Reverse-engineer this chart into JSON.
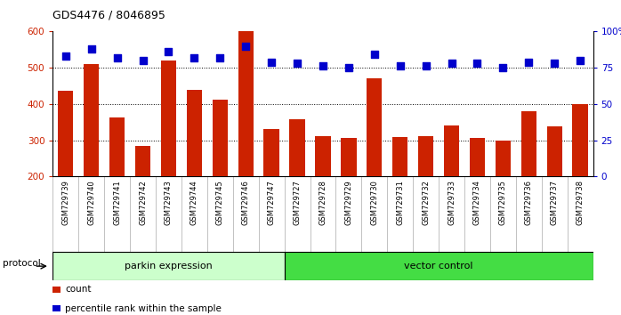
{
  "title": "GDS4476 / 8046895",
  "samples": [
    "GSM729739",
    "GSM729740",
    "GSM729741",
    "GSM729742",
    "GSM729743",
    "GSM729744",
    "GSM729745",
    "GSM729746",
    "GSM729747",
    "GSM729727",
    "GSM729728",
    "GSM729729",
    "GSM729730",
    "GSM729731",
    "GSM729732",
    "GSM729733",
    "GSM729734",
    "GSM729735",
    "GSM729736",
    "GSM729737",
    "GSM729738"
  ],
  "count_values": [
    437,
    510,
    362,
    283,
    519,
    440,
    411,
    600,
    330,
    357,
    310,
    307,
    470,
    309,
    311,
    341,
    307,
    299,
    381,
    338,
    399
  ],
  "percentile_values": [
    83,
    88,
    82,
    80,
    86,
    82,
    82,
    90,
    79,
    78,
    76,
    75,
    84,
    76,
    76,
    78,
    78,
    75,
    79,
    78,
    80
  ],
  "group1_count": 9,
  "group2_count": 12,
  "group1_label": "parkin expression",
  "group2_label": "vector control",
  "group1_color": "#ccffcc",
  "group2_color": "#44dd44",
  "protocol_label": "protocol",
  "bar_color": "#cc2200",
  "dot_color": "#0000cc",
  "ylim_left": [
    200,
    600
  ],
  "ylim_right": [
    0,
    100
  ],
  "yticks_left": [
    200,
    300,
    400,
    500,
    600
  ],
  "yticks_right": [
    0,
    25,
    50,
    75,
    100
  ],
  "ytick_labels_right": [
    "0",
    "25",
    "50",
    "75",
    "100%"
  ],
  "grid_lines": [
    300,
    400,
    500
  ],
  "legend_count_label": "count",
  "legend_pct_label": "percentile rank within the sample",
  "bar_width": 0.6,
  "dot_size": 30,
  "cell_color": "#d0d0d0",
  "cell_edge_color": "#aaaaaa"
}
